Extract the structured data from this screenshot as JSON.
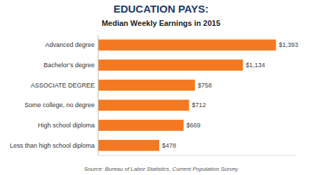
{
  "chart_data": {
    "type": "bar",
    "orientation": "horizontal",
    "title": "EDUCATION PAYS:",
    "subtitle": "Median Weekly Earnings in 2015",
    "source": "Source: Bureau of Labor Statistics, Current Population Survey",
    "categories": [
      "Less than high school diploma",
      "High school diploma",
      "Some college, no degree",
      "ASSOCIATE DEGREE",
      "Bachelor’s degree",
      "Advanced degree"
    ],
    "values": [
      478,
      669,
      712,
      758,
      1134,
      1393
    ],
    "value_labels": [
      "$478",
      "$669",
      "$712",
      "$758",
      "$1,134",
      "$1,393"
    ],
    "color": "#F47920",
    "xlim": [
      0,
      1550
    ],
    "data_labels": true,
    "tick_labels": "y",
    "grid": false
  }
}
